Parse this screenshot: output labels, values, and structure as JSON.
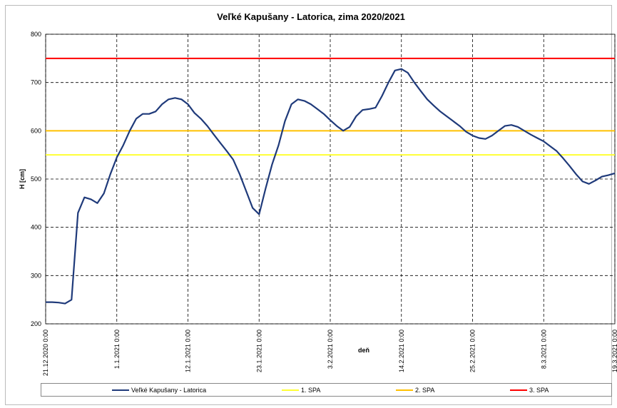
{
  "chart_data": {
    "type": "line",
    "title": "Veľké Kapušany - Latorica, zima 2020/2021",
    "xlabel": "deň",
    "ylabel": "H [cm]",
    "x": [
      "2020-12-21",
      "2020-12-22",
      "2020-12-23",
      "2020-12-24",
      "2020-12-25",
      "2020-12-26",
      "2020-12-27",
      "2020-12-28",
      "2020-12-29",
      "2020-12-30",
      "2020-12-31",
      "2021-01-01",
      "2021-01-02",
      "2021-01-03",
      "2021-01-04",
      "2021-01-05",
      "2021-01-06",
      "2021-01-07",
      "2021-01-08",
      "2021-01-09",
      "2021-01-10",
      "2021-01-11",
      "2021-01-12",
      "2021-01-13",
      "2021-01-14",
      "2021-01-15",
      "2021-01-16",
      "2021-01-17",
      "2021-01-18",
      "2021-01-19",
      "2021-01-20",
      "2021-01-21",
      "2021-01-22",
      "2021-01-23",
      "2021-01-24",
      "2021-01-25",
      "2021-01-26",
      "2021-01-27",
      "2021-01-28",
      "2021-01-29",
      "2021-01-30",
      "2021-01-31",
      "2021-02-01",
      "2021-02-02",
      "2021-02-03",
      "2021-02-04",
      "2021-02-05",
      "2021-02-06",
      "2021-02-07",
      "2021-02-08",
      "2021-02-09",
      "2021-02-10",
      "2021-02-11",
      "2021-02-12",
      "2021-02-13",
      "2021-02-14",
      "2021-02-15",
      "2021-02-16",
      "2021-02-17",
      "2021-02-18",
      "2021-02-19",
      "2021-02-20",
      "2021-02-21",
      "2021-02-22",
      "2021-02-23",
      "2021-02-24",
      "2021-02-25",
      "2021-02-26",
      "2021-02-27",
      "2021-02-28",
      "2021-03-01",
      "2021-03-02",
      "2021-03-03",
      "2021-03-04",
      "2021-03-05",
      "2021-03-06",
      "2021-03-07",
      "2021-03-08",
      "2021-03-09",
      "2021-03-10",
      "2021-03-11",
      "2021-03-12",
      "2021-03-13",
      "2021-03-14",
      "2021-03-15",
      "2021-03-16",
      "2021-03-17",
      "2021-03-18",
      "2021-03-19"
    ],
    "series": [
      {
        "name": "Veľké Kapušany - Latorica",
        "color": "#1f3a7a",
        "values": [
          245,
          245,
          244,
          242,
          250,
          430,
          462,
          458,
          450,
          470,
          510,
          545,
          570,
          600,
          625,
          635,
          635,
          640,
          655,
          665,
          668,
          665,
          655,
          637,
          625,
          610,
          592,
          575,
          558,
          540,
          510,
          475,
          440,
          427,
          480,
          530,
          570,
          620,
          655,
          665,
          662,
          655,
          645,
          635,
          622,
          610,
          600,
          608,
          630,
          643,
          645,
          648,
          672,
          700,
          725,
          728,
          720,
          700,
          682,
          665,
          652,
          640,
          630,
          620,
          610,
          598,
          590,
          585,
          583,
          590,
          600,
          610,
          612,
          608,
          600,
          592,
          585,
          578,
          568,
          558,
          543,
          527,
          510,
          495,
          490,
          497,
          505,
          508,
          512
        ]
      }
    ],
    "reference_lines": [
      {
        "name": "1. SPA",
        "color": "#ffff33",
        "value": 550
      },
      {
        "name": "2. SPA",
        "color": "#ffc000",
        "value": 600
      },
      {
        "name": "3. SPA",
        "color": "#ff0000",
        "value": 750
      }
    ],
    "xlim": [
      "2020-12-21",
      "2021-03-19"
    ],
    "xticks": [
      {
        "value": "2020-12-21",
        "label": "21.12.2020 0:00"
      },
      {
        "value": "2021-01-01",
        "label": "1.1.2021 0:00"
      },
      {
        "value": "2021-01-12",
        "label": "12.1.2021 0:00"
      },
      {
        "value": "2021-01-23",
        "label": "23.1.2021 0:00"
      },
      {
        "value": "2021-02-03",
        "label": "3.2.2021 0:00"
      },
      {
        "value": "2021-02-14",
        "label": "14.2.2021 0:00"
      },
      {
        "value": "2021-02-25",
        "label": "25.2.2021 0:00"
      },
      {
        "value": "2021-03-08",
        "label": "8.3.2021 0:00"
      },
      {
        "value": "2021-03-19",
        "label": "19.3.2021 0:00"
      }
    ],
    "ylim": [
      200,
      800
    ],
    "yticks": [
      200,
      300,
      400,
      500,
      600,
      700,
      800
    ],
    "grid": true
  }
}
